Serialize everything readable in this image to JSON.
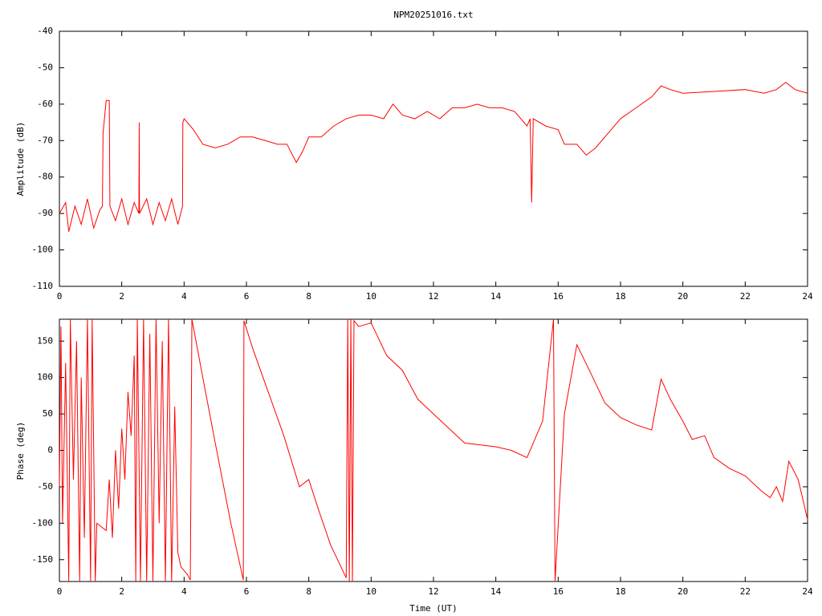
{
  "chart_data": [
    {
      "type": "line",
      "title": "NPM20251016.txt",
      "y_label": "Amplitude (dB)",
      "color": "#ff0000",
      "xlim": [
        0,
        24
      ],
      "xticks": [
        0,
        2,
        4,
        6,
        8,
        10,
        12,
        14,
        16,
        18,
        20,
        22,
        24
      ],
      "ylim": [
        -110,
        -40
      ],
      "yticks": [
        -110,
        -100,
        -90,
        -80,
        -70,
        -60,
        -50,
        -40
      ],
      "x": [
        0,
        0.2,
        0.3,
        0.5,
        0.7,
        0.9,
        1.1,
        1.3,
        1.38,
        1.4,
        1.5,
        1.6,
        1.62,
        1.8,
        2.0,
        2.2,
        2.4,
        2.55,
        2.56,
        2.57,
        2.8,
        3.0,
        3.2,
        3.4,
        3.6,
        3.8,
        3.95,
        3.96,
        4.0,
        4.3,
        4.6,
        5.0,
        5.4,
        5.8,
        6.2,
        6.6,
        7.0,
        7.3,
        7.6,
        7.8,
        8.0,
        8.4,
        8.8,
        9.2,
        9.6,
        10.0,
        10.4,
        10.7,
        11.0,
        11.4,
        11.8,
        12.2,
        12.6,
        13.0,
        13.4,
        13.8,
        14.2,
        14.6,
        15.0,
        15.1,
        15.15,
        15.2,
        15.6,
        16.0,
        16.2,
        16.6,
        16.9,
        17.2,
        17.6,
        18.0,
        18.5,
        19.0,
        19.3,
        19.6,
        20.0,
        21.0,
        22.0,
        22.6,
        23.0,
        23.3,
        23.6,
        24.0
      ],
      "values": [
        -90,
        -87,
        -95,
        -88,
        -93,
        -86,
        -94,
        -89,
        -88,
        -68,
        -59,
        -59,
        -88,
        -92,
        -86,
        -93,
        -87,
        -90,
        -65,
        -90,
        -86,
        -93,
        -87,
        -92,
        -86,
        -93,
        -88,
        -65,
        -64,
        -67,
        -71,
        -72,
        -71,
        -69,
        -69,
        -70,
        -71,
        -71,
        -76,
        -73,
        -69,
        -69,
        -66,
        -64,
        -63,
        -63,
        -64,
        -60,
        -63,
        -64,
        -62,
        -64,
        -61,
        -61,
        -60,
        -61,
        -61,
        -62,
        -66,
        -64,
        -87,
        -64,
        -66,
        -67,
        -71,
        -71,
        -74,
        -72,
        -68,
        -64,
        -61,
        -58,
        -55,
        -56,
        -57,
        -56.5,
        -56,
        -57,
        -56,
        -54,
        -56,
        -57
      ]
    },
    {
      "type": "line",
      "y_label": "Phase (deg)",
      "x_label": "Time (UT)",
      "color": "#ff0000",
      "xlim": [
        0,
        24
      ],
      "xticks": [
        0,
        2,
        4,
        6,
        8,
        10,
        12,
        14,
        16,
        18,
        20,
        22,
        24
      ],
      "ylim": [
        -180,
        180
      ],
      "yticks": [
        -150,
        -100,
        -50,
        0,
        50,
        100,
        150
      ],
      "x": [
        0,
        0.05,
        0.1,
        0.2,
        0.3,
        0.35,
        0.45,
        0.55,
        0.65,
        0.7,
        0.8,
        0.9,
        1.0,
        1.05,
        1.15,
        1.2,
        1.5,
        1.6,
        1.7,
        1.8,
        1.9,
        2.0,
        2.1,
        2.2,
        2.3,
        2.4,
        2.45,
        2.5,
        2.6,
        2.7,
        2.8,
        2.9,
        3.0,
        3.1,
        3.2,
        3.3,
        3.4,
        3.5,
        3.6,
        3.7,
        3.8,
        3.9,
        4.1,
        4.2,
        4.25,
        4.6,
        5.0,
        5.5,
        5.9,
        5.92,
        6.2,
        6.7,
        7.2,
        7.7,
        8.0,
        8.3,
        8.7,
        9.2,
        9.25,
        9.3,
        9.35,
        9.4,
        9.45,
        9.6,
        10.0,
        10.5,
        11.0,
        11.5,
        12.0,
        12.5,
        13.0,
        14.0,
        14.5,
        15.0,
        15.5,
        15.85,
        15.9,
        16.2,
        16.6,
        17.0,
        17.5,
        18.0,
        18.5,
        19.0,
        19.3,
        19.6,
        20.0,
        20.3,
        20.7,
        21.0,
        21.5,
        22.0,
        22.5,
        22.8,
        23.0,
        23.2,
        23.4,
        23.7,
        24.0
      ],
      "values": [
        -50,
        170,
        -100,
        120,
        -180,
        180,
        -40,
        150,
        -180,
        100,
        -120,
        180,
        -180,
        180,
        -180,
        -100,
        -110,
        -40,
        -120,
        0,
        -80,
        30,
        -40,
        80,
        20,
        130,
        -180,
        180,
        -180,
        180,
        -180,
        160,
        -180,
        180,
        -100,
        150,
        -180,
        180,
        -180,
        60,
        -140,
        -160,
        -170,
        -178,
        180,
        100,
        10,
        -100,
        -178,
        178,
        140,
        80,
        20,
        -50,
        -40,
        -80,
        -130,
        -175,
        180,
        -180,
        180,
        -180,
        178,
        170,
        175,
        130,
        110,
        70,
        50,
        30,
        10,
        5,
        0,
        -10,
        40,
        180,
        -180,
        50,
        145,
        110,
        65,
        45,
        35,
        28,
        98,
        70,
        40,
        15,
        20,
        -10,
        -25,
        -35,
        -55,
        -65,
        -50,
        -70,
        -15,
        -40,
        -95
      ]
    }
  ]
}
